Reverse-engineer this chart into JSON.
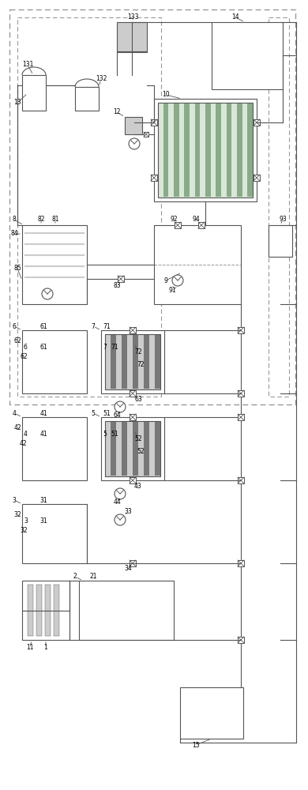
{
  "bg": "#ffffff",
  "lc": "#555555",
  "dc": "#999999",
  "gc": "#5a8a5a",
  "lgf": "#cccccc",
  "df": "#777777",
  "wc": "#ffffff",
  "figsize": [
    3.9,
    10.0
  ],
  "dpi": 100
}
